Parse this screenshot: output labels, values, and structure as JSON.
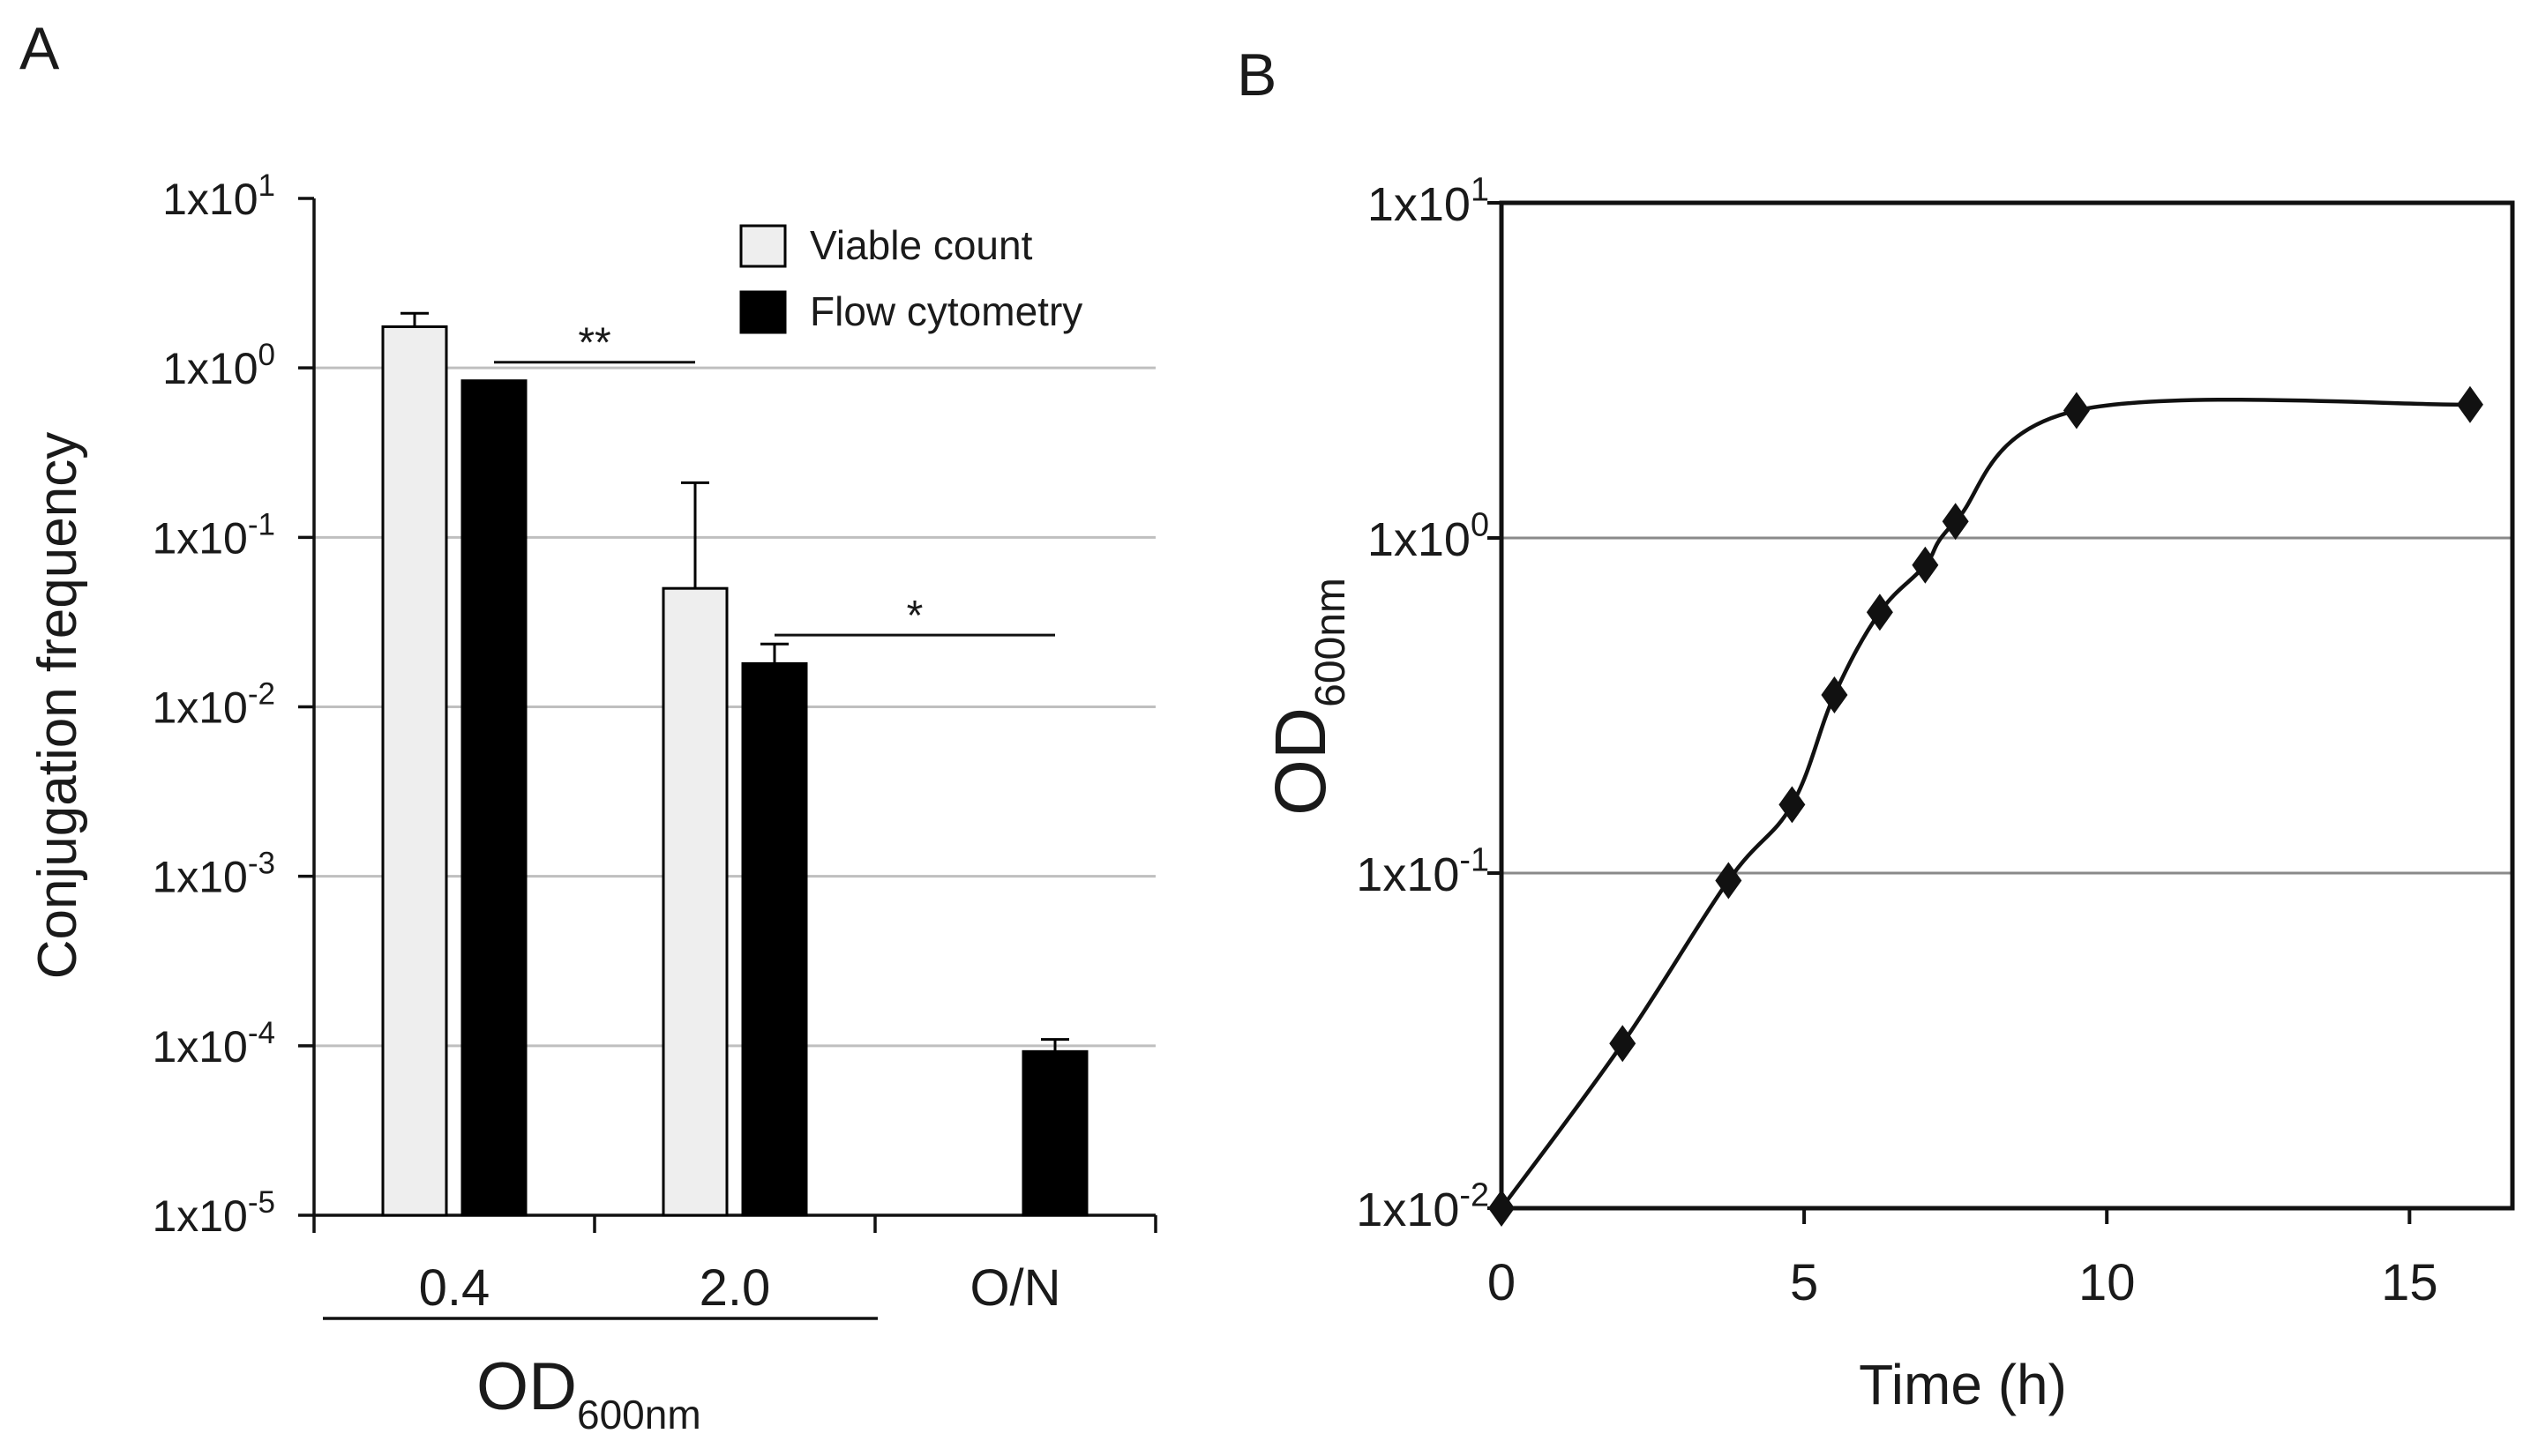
{
  "panels": {
    "a": {
      "label": "A"
    },
    "b": {
      "label": "B"
    }
  },
  "chart_data": [
    {
      "id": "panel-a",
      "type": "bar",
      "yscale": "log",
      "ylim": [
        1e-05,
        10
      ],
      "yticks": [
        {
          "value": 10,
          "base": "1x10",
          "exp": "1"
        },
        {
          "value": 1,
          "base": "1x10",
          "exp": "0"
        },
        {
          "value": 0.1,
          "base": "1x10",
          "exp": "-1"
        },
        {
          "value": 0.01,
          "base": "1x10",
          "exp": "-2"
        },
        {
          "value": 0.001,
          "base": "1x10",
          "exp": "-3"
        },
        {
          "value": 0.0001,
          "base": "1x10",
          "exp": "-4"
        },
        {
          "value": 1e-05,
          "base": "1x10",
          "exp": "-5"
        }
      ],
      "ylabel": "Conjugation frequency",
      "xlabel": {
        "main": "OD",
        "sub": "600nm"
      },
      "categories": [
        "0.4",
        "2.0",
        "O/N"
      ],
      "series": [
        {
          "name": "Viable count",
          "color": "#eeeeee",
          "values": [
            1.75,
            0.05,
            null
          ],
          "errors": [
            2.1,
            0.21,
            null
          ]
        },
        {
          "name": "Flow cytometry",
          "color": "#000000",
          "values": [
            0.84,
            0.018,
            9.25e-05
          ],
          "errors": [
            0.84,
            0.0235,
            0.000109
          ]
        }
      ],
      "significance": [
        {
          "label": "**",
          "from": {
            "category": 0,
            "series": 1
          },
          "to": {
            "category": 1,
            "series": 0
          },
          "level": 1.08
        },
        {
          "label": "*",
          "from": {
            "category": 1,
            "series": 1
          },
          "to": {
            "category": 2,
            "series": 1
          },
          "level": 0.0265
        }
      ],
      "legend": "top-right",
      "grid": true
    },
    {
      "id": "panel-b",
      "type": "line",
      "yscale": "log",
      "ylim": [
        0.01,
        10
      ],
      "xlim": [
        0,
        16.7
      ],
      "xticks": [
        0,
        5,
        10,
        15
      ],
      "yticks": [
        {
          "value": 10,
          "base": "1x10",
          "exp": "1"
        },
        {
          "value": 1,
          "base": "1x10",
          "exp": "0"
        },
        {
          "value": 0.1,
          "base": "1x10",
          "exp": "-1"
        },
        {
          "value": 0.01,
          "base": "1x10",
          "exp": "-2"
        }
      ],
      "xlabel": "Time (h)",
      "ylabel": {
        "main": "OD",
        "sub": "600nm"
      },
      "series": [
        {
          "name": "OD600nm",
          "x": [
            0,
            2,
            3.75,
            4.8,
            5.5,
            6.25,
            7.0,
            7.5,
            9.5,
            16
          ],
          "y": [
            0.01,
            0.031,
            0.095,
            0.16,
            0.34,
            0.6,
            0.83,
            1.12,
            2.4,
            2.5
          ]
        }
      ],
      "grid": true
    }
  ]
}
